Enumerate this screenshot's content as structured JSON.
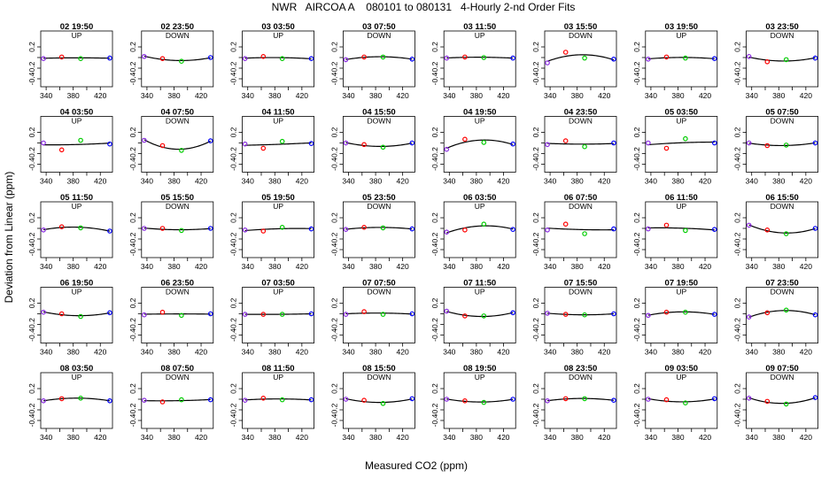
{
  "title": "NWR   AIRCOA A    080101 to 080131   4-Hourly 2-nd Order Fits",
  "chart_data": {
    "type": "scatter",
    "title": "NWR   AIRCOA A    080101 to 080131   4-Hourly 2-nd Order Fits",
    "xlabel": "Measured CO2 (ppm)",
    "ylabel": "Deviation from Linear (ppm)",
    "xlim": [
      332,
      438
    ],
    "ylim": [
      -0.55,
      0.5
    ],
    "xticks": [
      340,
      380,
      420
    ],
    "xticks_minor": [
      360,
      400
    ],
    "yticks": [
      0.2,
      -0.2,
      -0.4
    ],
    "yticks_minor": [
      0.0
    ],
    "point_x": [
      336,
      363,
      391,
      434
    ],
    "point_colors": [
      "#8a2be2",
      "#ff0000",
      "#00cc00",
      "#0000ff"
    ],
    "grid": false,
    "panels": [
      {
        "title": "02 19:50",
        "dir": "UP",
        "y": [
          -0.02,
          0.01,
          -0.02,
          -0.01
        ]
      },
      {
        "title": "02 23:50",
        "dir": "DOWN",
        "y": [
          0.02,
          -0.02,
          -0.07,
          0.0
        ]
      },
      {
        "title": "03 03:50",
        "dir": "UP",
        "y": [
          -0.02,
          0.02,
          -0.02,
          -0.02
        ]
      },
      {
        "title": "03 07:50",
        "dir": "DOWN",
        "y": [
          -0.04,
          0.01,
          0.01,
          -0.03
        ]
      },
      {
        "title": "03 11:50",
        "dir": "UP",
        "y": [
          -0.01,
          0.01,
          0.0,
          -0.01
        ]
      },
      {
        "title": "03 15:50",
        "dir": "DOWN",
        "y": [
          -0.1,
          0.1,
          -0.01,
          -0.03
        ]
      },
      {
        "title": "03 19:50",
        "dir": "UP",
        "y": [
          -0.03,
          0.01,
          -0.01,
          -0.02
        ]
      },
      {
        "title": "03 23:50",
        "dir": "DOWN",
        "y": [
          0.02,
          -0.08,
          -0.04,
          -0.01
        ]
      },
      {
        "title": "04 03:50",
        "dir": "UP",
        "y": [
          0.0,
          -0.13,
          0.05,
          -0.02
        ]
      },
      {
        "title": "04 07:50",
        "dir": "DOWN",
        "y": [
          0.05,
          -0.05,
          -0.14,
          0.04
        ]
      },
      {
        "title": "04 11:50",
        "dir": "UP",
        "y": [
          -0.02,
          -0.1,
          0.03,
          -0.01
        ]
      },
      {
        "title": "04 15:50",
        "dir": "DOWN",
        "y": [
          0.0,
          -0.03,
          -0.08,
          0.0
        ]
      },
      {
        "title": "04 19:50",
        "dir": "UP",
        "y": [
          -0.12,
          0.07,
          0.01,
          -0.02
        ]
      },
      {
        "title": "04 23:50",
        "dir": "DOWN",
        "y": [
          -0.03,
          0.04,
          -0.07,
          0.0
        ]
      },
      {
        "title": "05 03:50",
        "dir": "UP",
        "y": [
          0.0,
          -0.1,
          0.08,
          0.0
        ]
      },
      {
        "title": "05 07:50",
        "dir": "DOWN",
        "y": [
          0.0,
          -0.05,
          -0.04,
          0.0
        ]
      },
      {
        "title": "05 11:50",
        "dir": "UP",
        "y": [
          -0.03,
          0.03,
          0.01,
          -0.05
        ]
      },
      {
        "title": "05 15:50",
        "dir": "DOWN",
        "y": [
          0.0,
          0.0,
          -0.04,
          0.0
        ]
      },
      {
        "title": "05 19:50",
        "dir": "UP",
        "y": [
          -0.03,
          -0.05,
          0.02,
          -0.01
        ]
      },
      {
        "title": "05 23:50",
        "dir": "DOWN",
        "y": [
          -0.02,
          0.02,
          0.01,
          -0.01
        ]
      },
      {
        "title": "06 03:50",
        "dir": "UP",
        "y": [
          -0.07,
          -0.03,
          0.08,
          -0.02
        ]
      },
      {
        "title": "06 07:50",
        "dir": "DOWN",
        "y": [
          -0.03,
          0.08,
          -0.1,
          -0.01
        ]
      },
      {
        "title": "06 11:50",
        "dir": "UP",
        "y": [
          -0.01,
          0.06,
          -0.04,
          -0.02
        ]
      },
      {
        "title": "06 15:50",
        "dir": "DOWN",
        "y": [
          0.06,
          -0.03,
          -0.1,
          0.0
        ]
      },
      {
        "title": "06 19:50",
        "dir": "UP",
        "y": [
          0.03,
          0.0,
          -0.05,
          0.02
        ]
      },
      {
        "title": "06 23:50",
        "dir": "DOWN",
        "y": [
          -0.02,
          0.03,
          -0.03,
          0.0
        ]
      },
      {
        "title": "07 03:50",
        "dir": "UP",
        "y": [
          -0.01,
          -0.01,
          -0.01,
          0.0
        ]
      },
      {
        "title": "07 07:50",
        "dir": "DOWN",
        "y": [
          -0.01,
          0.04,
          -0.01,
          0.0
        ]
      },
      {
        "title": "07 11:50",
        "dir": "UP",
        "y": [
          0.05,
          -0.04,
          -0.04,
          0.02
        ]
      },
      {
        "title": "07 15:50",
        "dir": "DOWN",
        "y": [
          0.01,
          -0.01,
          -0.02,
          0.0
        ]
      },
      {
        "title": "07 19:50",
        "dir": "UP",
        "y": [
          -0.03,
          0.03,
          0.03,
          -0.01
        ]
      },
      {
        "title": "07 23:50",
        "dir": "DOWN",
        "y": [
          -0.06,
          0.02,
          0.07,
          -0.02
        ]
      },
      {
        "title": "08 03:50",
        "dir": "UP",
        "y": [
          -0.03,
          0.01,
          0.02,
          -0.03
        ]
      },
      {
        "title": "08 07:50",
        "dir": "DOWN",
        "y": [
          -0.02,
          -0.05,
          -0.01,
          -0.01
        ]
      },
      {
        "title": "08 11:50",
        "dir": "UP",
        "y": [
          -0.02,
          0.02,
          -0.01,
          -0.01
        ]
      },
      {
        "title": "08 15:50",
        "dir": "DOWN",
        "y": [
          0.0,
          -0.02,
          -0.08,
          0.01
        ]
      },
      {
        "title": "08 19:50",
        "dir": "UP",
        "y": [
          0.0,
          -0.03,
          -0.06,
          0.0
        ]
      },
      {
        "title": "08 23:50",
        "dir": "DOWN",
        "y": [
          -0.03,
          0.01,
          0.01,
          -0.02
        ]
      },
      {
        "title": "09 03:50",
        "dir": "UP",
        "y": [
          0.0,
          -0.01,
          -0.07,
          0.01
        ]
      },
      {
        "title": "09 07:50",
        "dir": "DOWN",
        "y": [
          0.02,
          -0.04,
          -0.09,
          0.03
        ]
      }
    ]
  }
}
